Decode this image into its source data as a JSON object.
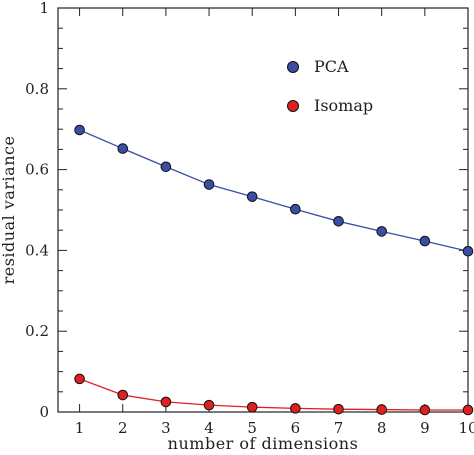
{
  "chart_data": {
    "type": "line",
    "xlabel": "number of dimensions",
    "ylabel": "residual variance",
    "xlim": [
      0.5,
      10
    ],
    "ylim": [
      0,
      1
    ],
    "x": [
      1,
      2,
      3,
      4,
      5,
      6,
      7,
      8,
      9,
      10
    ],
    "xticks": [
      "1",
      "2",
      "3",
      "4",
      "5",
      "6",
      "7",
      "8",
      "9",
      "10"
    ],
    "yticks": [
      "0",
      "0.2",
      "0.4",
      "0.6",
      "0.8",
      "1"
    ],
    "ytick_values": [
      0,
      0.2,
      0.4,
      0.6,
      0.8,
      1
    ],
    "legend_placement": "top-right",
    "grid": false,
    "series": [
      {
        "name": "PCA",
        "color": "#3a4fa3",
        "values": [
          0.698,
          0.652,
          0.607,
          0.563,
          0.533,
          0.502,
          0.472,
          0.447,
          0.423,
          0.398
        ]
      },
      {
        "name": "Isomap",
        "color": "#e02020",
        "values": [
          0.082,
          0.042,
          0.025,
          0.017,
          0.012,
          0.009,
          0.007,
          0.006,
          0.005,
          0.005
        ]
      }
    ]
  }
}
